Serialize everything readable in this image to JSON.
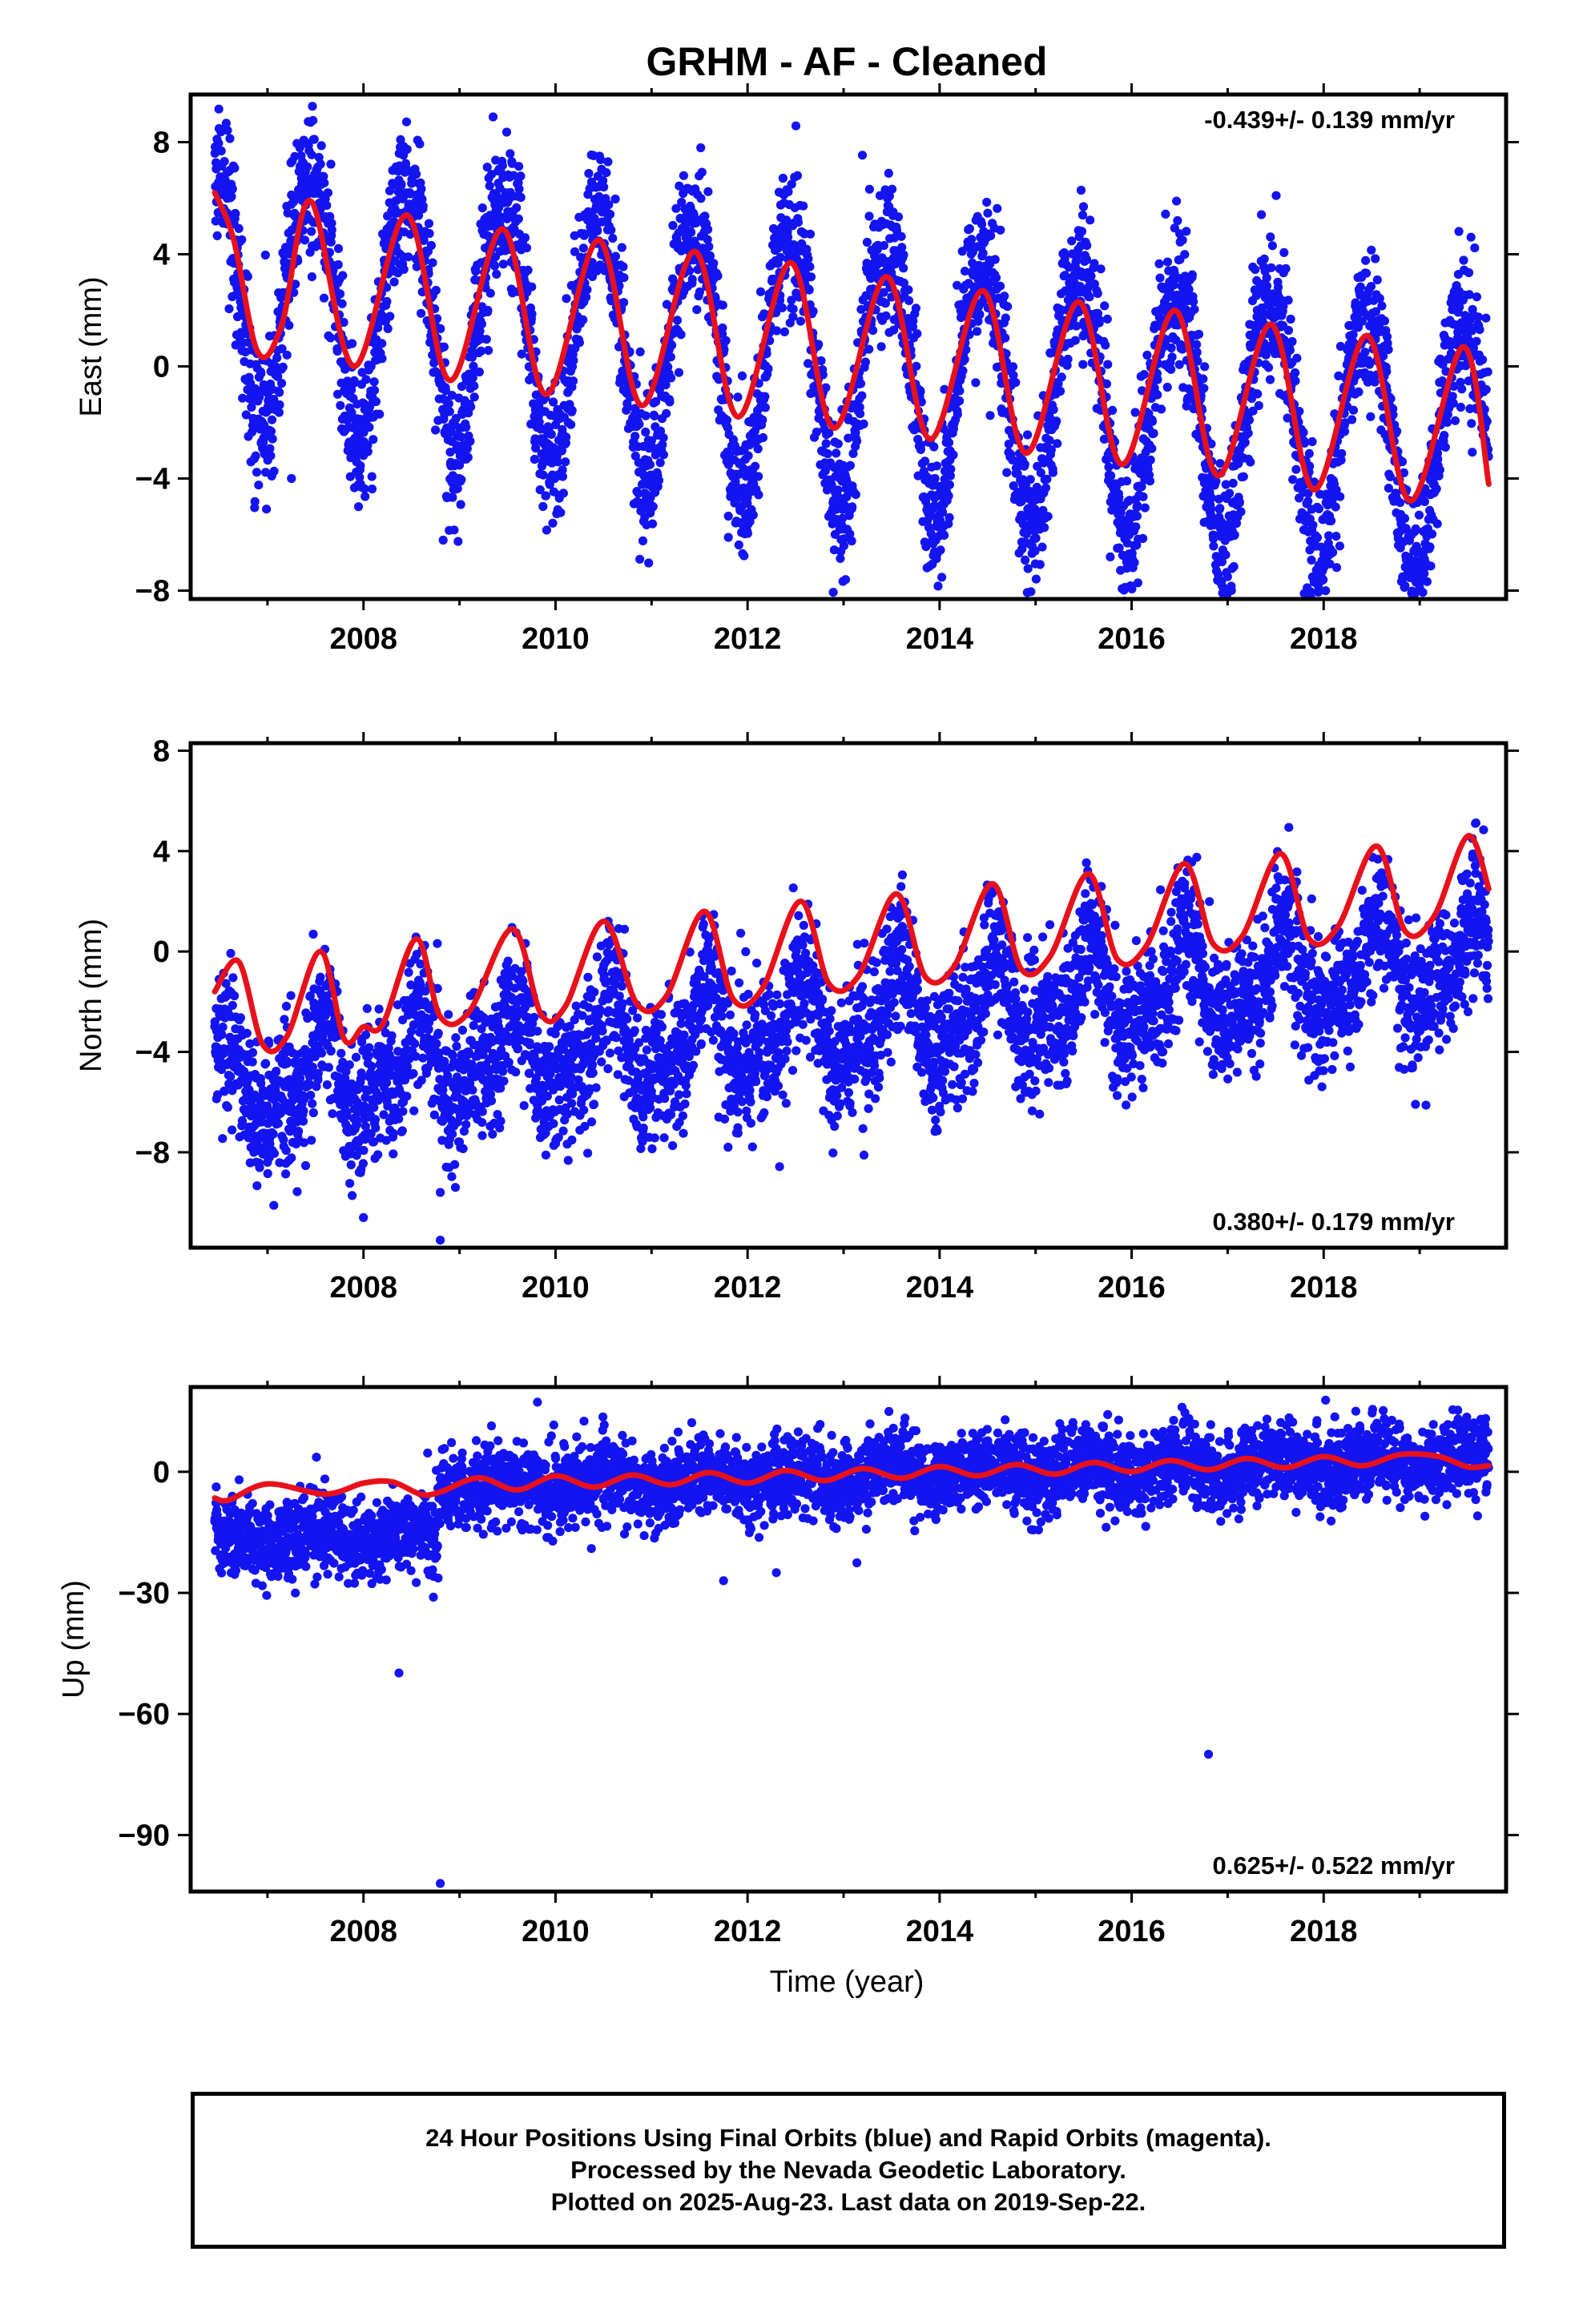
{
  "page": {
    "title": "GRHM  - AF - Cleaned",
    "x_axis_label": "Time (year)",
    "caption": [
      "24 Hour Positions Using Final Orbits (blue) and Rapid Orbits (magenta).",
      "Processed by the Nevada Geodetic Laboratory.",
      "Plotted on 2025-Aug-23. Last data on 2019-Sep-22."
    ]
  },
  "colors": {
    "final_orbits": "#1414f0",
    "model_fit": "#e8111b",
    "frame": "#000000"
  },
  "chart_data": [
    {
      "type": "scatter",
      "title": "",
      "ylabel": "East (mm)",
      "xlabel": "",
      "xlim": [
        2006.2,
        2019.9
      ],
      "ylim": [
        -8.3,
        9.7
      ],
      "xticks": [
        2008,
        2010,
        2012,
        2014,
        2016,
        2018
      ],
      "yticks": [
        -8,
        -4,
        0,
        4,
        8
      ],
      "grid": false,
      "rate": "-0.439+/- 0.139 mm/yr",
      "rate_position": "top-right",
      "data_span": [
        2006.45,
        2019.72
      ],
      "series": [
        {
          "name": "24 Hour Positions (Final Orbits)",
          "kind": "points",
          "model": {
            "offset": 0.0,
            "trend_mm_per_yr": -0.439,
            "annual_amp": 4.6,
            "annual_peak": 0.45,
            "semi_amp": 0.45,
            "semi_peak": 0.2,
            "noise_sd": 1.3,
            "outlier_rate": 0.006
          },
          "outliers": [
            {
              "x": 2008.83,
              "y": -6.2
            },
            {
              "x": 2011.8,
              "y": -6.1
            },
            {
              "x": 2015.95,
              "y": -7.2
            },
            {
              "x": 2019.0,
              "y": -7.9
            },
            {
              "x": 2007.25,
              "y": -4.0
            },
            {
              "x": 2009.35,
              "y": 8.9
            }
          ]
        },
        {
          "name": "Model fit",
          "kind": "line",
          "x": [
            2006.45,
            2006.65,
            2006.9,
            2007.15,
            2007.45,
            2007.9,
            2008.45,
            2008.9,
            2009.45,
            2009.9,
            2010.45,
            2010.9,
            2011.45,
            2011.9,
            2012.45,
            2012.9,
            2013.45,
            2013.9,
            2014.45,
            2014.9,
            2015.45,
            2015.9,
            2016.45,
            2016.9,
            2017.45,
            2017.9,
            2018.45,
            2018.9,
            2019.45,
            2019.72
          ],
          "y": [
            6.2,
            4.5,
            0.5,
            1.5,
            5.9,
            0.0,
            5.4,
            -0.5,
            4.9,
            -1.0,
            4.5,
            -1.4,
            4.1,
            -1.8,
            3.7,
            -2.2,
            3.2,
            -2.6,
            2.7,
            -3.1,
            2.3,
            -3.5,
            2.0,
            -3.9,
            1.5,
            -4.4,
            1.1,
            -4.8,
            0.7,
            -4.2
          ]
        }
      ]
    },
    {
      "type": "scatter",
      "title": "",
      "ylabel": "North (mm)",
      "xlabel": "",
      "xlim": [
        2006.2,
        2019.9
      ],
      "ylim": [
        -11.8,
        8.3
      ],
      "xticks": [
        2008,
        2010,
        2012,
        2014,
        2016,
        2018
      ],
      "yticks": [
        -8,
        -4,
        0,
        4,
        8
      ],
      "grid": false,
      "rate": "0.380+/- 0.179 mm/yr",
      "rate_position": "bottom-right",
      "data_span": [
        2006.45,
        2019.72
      ],
      "series": [
        {
          "name": "24 Hour Positions (Final Orbits)",
          "kind": "points",
          "model": {
            "offset": -2.9,
            "trend_mm_per_yr": 0.38,
            "annual_amp": 1.6,
            "annual_peak": 0.55,
            "semi_amp": 0.8,
            "semi_peak": 0.1,
            "noise_sd": 1.35,
            "outlier_rate": 0.006
          },
          "outliers": [
            {
              "x": 2008.0,
              "y": -10.6
            },
            {
              "x": 2008.8,
              "y": -11.5
            },
            {
              "x": 2008.8,
              "y": -9.6
            },
            {
              "x": 2011.7,
              "y": -6.6
            },
            {
              "x": 2011.9,
              "y": -6.4
            },
            {
              "x": 2016.85,
              "y": -4.9
            }
          ]
        },
        {
          "name": "Model fit",
          "kind": "line",
          "x": [
            2006.45,
            2006.7,
            2006.95,
            2007.2,
            2007.55,
            2007.8,
            2008.0,
            2008.2,
            2008.55,
            2008.8,
            2009.1,
            2009.55,
            2009.85,
            2010.1,
            2010.5,
            2010.85,
            2011.15,
            2011.55,
            2011.85,
            2012.15,
            2012.55,
            2012.85,
            2013.15,
            2013.55,
            2013.85,
            2014.15,
            2014.55,
            2014.85,
            2015.15,
            2015.55,
            2015.85,
            2016.15,
            2016.55,
            2016.85,
            2017.15,
            2017.55,
            2017.85,
            2018.15,
            2018.55,
            2018.85,
            2019.15,
            2019.5,
            2019.72
          ],
          "y": [
            -1.6,
            -0.4,
            -3.7,
            -3.4,
            0.0,
            -3.5,
            -3.0,
            -2.9,
            0.5,
            -2.6,
            -2.4,
            0.9,
            -2.5,
            -2.2,
            1.2,
            -2.1,
            -1.8,
            1.6,
            -1.9,
            -1.5,
            2.0,
            -1.3,
            -1.0,
            2.3,
            -1.0,
            -0.6,
            2.7,
            -0.7,
            -0.2,
            3.1,
            -0.3,
            0.2,
            3.5,
            0.3,
            0.6,
            3.9,
            0.5,
            1.0,
            4.2,
            0.8,
            1.4,
            4.6,
            2.5
          ]
        }
      ]
    },
    {
      "type": "scatter",
      "title": "",
      "ylabel": "Up (mm)",
      "xlabel": "Time (year)",
      "xlim": [
        2006.2,
        2019.9
      ],
      "ylim": [
        -104,
        21
      ],
      "xticks": [
        2008,
        2010,
        2012,
        2014,
        2016,
        2018
      ],
      "yticks": [
        -90,
        -60,
        -30,
        0
      ],
      "grid": false,
      "rate": "0.625+/- 0.522 mm/yr",
      "rate_position": "bottom-right",
      "data_span": [
        2006.45,
        2019.72
      ],
      "series": [
        {
          "name": "24 Hour Positions (Final Orbits)",
          "kind": "points",
          "model": {
            "offset": -1.0,
            "trend_mm_per_yr": 0.625,
            "annual_amp": 2.2,
            "annual_peak": 0.5,
            "semi_amp": 0.0,
            "semi_peak": 0.0,
            "noise_sd": 4.8,
            "outlier_rate": 0.004
          },
          "segments": [
            {
              "from": 2006.45,
              "to": 2008.78,
              "offset": -12.0
            }
          ],
          "outliers": [
            {
              "x": 2008.8,
              "y": -102
            },
            {
              "x": 2016.8,
              "y": -70
            },
            {
              "x": 2006.5,
              "y": -24
            },
            {
              "x": 2011.75,
              "y": -27
            },
            {
              "x": 2012.3,
              "y": -25
            }
          ]
        },
        {
          "name": "Model fit",
          "kind": "line",
          "x": [
            2006.45,
            2006.6,
            2007.0,
            2007.6,
            2008.0,
            2008.3,
            2008.6,
            2008.8,
            2009.2,
            2009.6,
            2010.0,
            2010.4,
            2010.8,
            2011.2,
            2011.6,
            2012.0,
            2012.4,
            2012.8,
            2013.2,
            2013.6,
            2014.0,
            2014.4,
            2014.8,
            2015.2,
            2015.6,
            2016.0,
            2016.4,
            2016.8,
            2017.2,
            2017.6,
            2018.0,
            2018.4,
            2018.8,
            2019.2,
            2019.5,
            2019.72
          ],
          "y": [
            -6.5,
            -7.0,
            -3.0,
            -5.5,
            -2.8,
            -2.5,
            -5.6,
            -5.0,
            -1.5,
            -4.5,
            -1.0,
            -3.8,
            -0.8,
            -3.2,
            -0.2,
            -2.8,
            0.3,
            -2.2,
            0.8,
            -1.6,
            1.3,
            -1.0,
            1.8,
            -0.6,
            2.3,
            0.0,
            2.8,
            0.5,
            3.3,
            1.0,
            3.8,
            1.5,
            4.3,
            3.8,
            1.2,
            1.5
          ]
        }
      ]
    }
  ]
}
